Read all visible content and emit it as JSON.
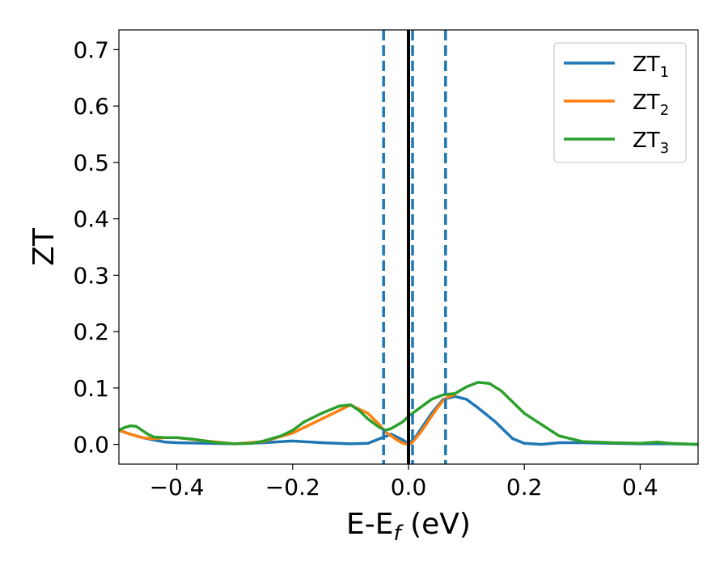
{
  "chart_data": {
    "type": "line",
    "xlabel_main": "E-E",
    "xlabel_sub": "f",
    "xlabel_unit": " (eV)",
    "ylabel": "ZT",
    "xlim": [
      -0.5,
      0.5
    ],
    "ylim": [
      -0.035,
      0.735
    ],
    "x_ticks": [
      -0.4,
      -0.2,
      0.0,
      0.2,
      0.4
    ],
    "x_tick_labels": [
      "−0.4",
      "−0.2",
      "0.0",
      "0.2",
      "0.4"
    ],
    "y_ticks": [
      0.0,
      0.1,
      0.2,
      0.3,
      0.4,
      0.5,
      0.6,
      0.7
    ],
    "y_tick_labels": [
      "0.0",
      "0.1",
      "0.2",
      "0.3",
      "0.4",
      "0.5",
      "0.6",
      "0.7"
    ],
    "grid": false,
    "legend_position": "top-right",
    "vertical_lines": [
      {
        "x": 0.0,
        "style": "solid",
        "color": "#000000"
      },
      {
        "x": -0.043,
        "style": "dashed",
        "color": "#1f77b4"
      },
      {
        "x": 0.007,
        "style": "dashed",
        "color": "#1f77b4"
      },
      {
        "x": 0.064,
        "style": "dashed",
        "color": "#1f77b4"
      }
    ],
    "series": [
      {
        "name_main": "ZT",
        "name_sub": "1",
        "color": "#1f77b4",
        "x": [
          -0.5,
          -0.48,
          -0.46,
          -0.44,
          -0.42,
          -0.4,
          -0.35,
          -0.3,
          -0.25,
          -0.2,
          -0.15,
          -0.1,
          -0.07,
          -0.05,
          -0.03,
          -0.01,
          0.0,
          0.01,
          0.02,
          0.04,
          0.06,
          0.08,
          0.1,
          0.12,
          0.15,
          0.18,
          0.2,
          0.23,
          0.26,
          0.3,
          0.35,
          0.4,
          0.45,
          0.5
        ],
        "y": [
          0.025,
          0.018,
          0.012,
          0.008,
          0.004,
          0.003,
          0.002,
          0.001,
          0.003,
          0.006,
          0.003,
          0.001,
          0.002,
          0.01,
          0.018,
          0.008,
          0.001,
          0.01,
          0.025,
          0.055,
          0.08,
          0.085,
          0.08,
          0.065,
          0.04,
          0.01,
          0.002,
          0.0,
          0.003,
          0.003,
          0.002,
          0.001,
          0.001,
          0.0
        ]
      },
      {
        "name_main": "ZT",
        "name_sub": "2",
        "color": "#ff7f0e",
        "x": [
          -0.5,
          -0.48,
          -0.46,
          -0.44,
          -0.42,
          -0.4,
          -0.35,
          -0.3,
          -0.25,
          -0.2,
          -0.15,
          -0.1,
          -0.07,
          -0.05,
          -0.04,
          -0.03,
          -0.02,
          -0.01,
          0.0,
          0.005,
          0.01,
          0.02,
          0.03,
          0.04,
          0.05,
          0.06,
          0.07,
          0.08
        ],
        "y": [
          0.025,
          0.018,
          0.012,
          0.01,
          0.012,
          0.012,
          0.006,
          0.001,
          0.005,
          0.02,
          0.045,
          0.07,
          0.055,
          0.035,
          0.022,
          0.015,
          0.008,
          0.002,
          0.0,
          0.002,
          0.008,
          0.02,
          0.035,
          0.05,
          0.065,
          0.078,
          0.085,
          0.088
        ]
      },
      {
        "name_main": "ZT",
        "name_sub": "3",
        "color": "#2ca02c",
        "x": [
          -0.5,
          -0.49,
          -0.48,
          -0.47,
          -0.46,
          -0.45,
          -0.44,
          -0.42,
          -0.4,
          -0.37,
          -0.33,
          -0.3,
          -0.27,
          -0.25,
          -0.22,
          -0.2,
          -0.18,
          -0.15,
          -0.12,
          -0.1,
          -0.085,
          -0.07,
          -0.05,
          -0.04,
          -0.03,
          -0.01,
          0.0,
          0.02,
          0.04,
          0.06,
          0.08,
          0.1,
          0.12,
          0.14,
          0.16,
          0.18,
          0.2,
          0.23,
          0.26,
          0.3,
          0.35,
          0.4,
          0.43,
          0.45,
          0.5
        ],
        "y": [
          0.025,
          0.03,
          0.033,
          0.032,
          0.025,
          0.018,
          0.013,
          0.012,
          0.012,
          0.009,
          0.003,
          0.001,
          0.002,
          0.006,
          0.015,
          0.025,
          0.04,
          0.055,
          0.068,
          0.07,
          0.06,
          0.045,
          0.03,
          0.025,
          0.028,
          0.04,
          0.05,
          0.065,
          0.08,
          0.088,
          0.09,
          0.102,
          0.11,
          0.108,
          0.095,
          0.075,
          0.055,
          0.035,
          0.015,
          0.005,
          0.003,
          0.002,
          0.004,
          0.002,
          0.0
        ]
      }
    ]
  }
}
